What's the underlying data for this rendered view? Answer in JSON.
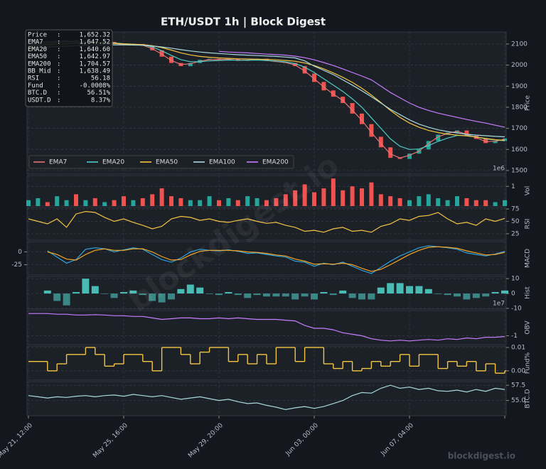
{
  "title": "ETH/USDT  1h  |  Block Digest",
  "watermark": "blockdigest.io",
  "info": [
    {
      "label": "Price",
      "value": "1,652.32"
    },
    {
      "label": "EMA7",
      "value": "1,647.52"
    },
    {
      "label": "EMA20",
      "value": "1,640.60"
    },
    {
      "label": "EMA50",
      "value": "1,642.97"
    },
    {
      "label": "EMA200",
      "value": "1,704.57"
    },
    {
      "label": "BB Mid",
      "value": "1,638.49"
    },
    {
      "label": "RSI",
      "value": "56.18"
    },
    {
      "label": "Fund",
      "value": "-0.0008%"
    },
    {
      "label": "BTC.D",
      "value": "56.51%"
    },
    {
      "label": "USDT.D",
      "value": "8.37%"
    }
  ],
  "chart_data": [
    {
      "type": "candle",
      "ylabel": "Price",
      "ylim": [
        1483,
        2157
      ],
      "yticks": [
        1500,
        1600,
        1700,
        1800,
        1900,
        2000,
        2100
      ],
      "grid": true,
      "up_color": "#26a69a",
      "down_color": "#ef5350",
      "legend": "lower left",
      "offset_label": "1e6",
      "values": [
        2105,
        2112,
        2110,
        2115,
        2118,
        2108,
        2112,
        2105,
        2110,
        2100,
        2095,
        2100,
        2092,
        2070,
        2040,
        2010,
        1995,
        2010,
        2025,
        2030,
        2025,
        2030,
        2020,
        2025,
        2030,
        2020,
        2015,
        2010,
        1995,
        1960,
        1920,
        1880,
        1850,
        1820,
        1770,
        1720,
        1660,
        1610,
        1560,
        1555,
        1580,
        1600,
        1640,
        1670,
        1680,
        1690,
        1665,
        1650,
        1630,
        1640,
        1652
      ],
      "series": [
        {
          "name": "EMA7",
          "color": "#e57373",
          "values": [
            2100,
            2108,
            2110,
            2113,
            2115,
            2111,
            2111,
            2107,
            2108,
            2103,
            2098,
            2098,
            2094,
            2078,
            2052,
            2022,
            2003,
            2006,
            2018,
            2026,
            2026,
            2028,
            2023,
            2024,
            2027,
            2022,
            2017,
            2012,
            2000,
            1972,
            1935,
            1896,
            1862,
            1832,
            1786,
            1738,
            1680,
            1628,
            1578,
            1560,
            1572,
            1592,
            1628,
            1660,
            1676,
            1686,
            1672,
            1656,
            1637,
            1639,
            1648
          ]
        },
        {
          "name": "EMA20",
          "color": "#4ecdc4",
          "values": [
            2095,
            2100,
            2104,
            2108,
            2110,
            2110,
            2110,
            2108,
            2108,
            2105,
            2101,
            2099,
            2096,
            2086,
            2068,
            2046,
            2026,
            2016,
            2016,
            2020,
            2022,
            2024,
            2023,
            2023,
            2024,
            2022,
            2019,
            2015,
            2007,
            1990,
            1965,
            1935,
            1905,
            1875,
            1840,
            1800,
            1750,
            1700,
            1650,
            1615,
            1600,
            1602,
            1618,
            1638,
            1654,
            1666,
            1666,
            1660,
            1650,
            1645,
            1641
          ]
        },
        {
          "name": "EMA50",
          "color": "#f4c542",
          "values": [
            2090,
            2093,
            2096,
            2099,
            2101,
            2103,
            2104,
            2104,
            2104,
            2103,
            2101,
            2099,
            2097,
            2092,
            2083,
            2071,
            2058,
            2048,
            2041,
            2037,
            2034,
            2032,
            2030,
            2029,
            2028,
            2027,
            2025,
            2022,
            2018,
            2010,
            1998,
            1982,
            1963,
            1942,
            1918,
            1890,
            1858,
            1822,
            1785,
            1752,
            1725,
            1705,
            1690,
            1680,
            1672,
            1668,
            1664,
            1659,
            1652,
            1646,
            1643
          ]
        },
        {
          "name": "EMA100",
          "color": "#a8dadc",
          "values": [
            2080,
            2083,
            2086,
            2088,
            2090,
            2092,
            2094,
            2095,
            2096,
            2096,
            2096,
            2095,
            2094,
            2091,
            2086,
            2080,
            2073,
            2067,
            2062,
            2058,
            2055,
            2052,
            2049,
            2047,
            2045,
            2043,
            2041,
            2038,
            2034,
            2020,
            1995,
            1975,
            1955,
            1930,
            1905,
            1878,
            1850,
            1820,
            1790,
            1765,
            1740,
            1720,
            1705,
            1693,
            1685,
            1678,
            1672,
            1668,
            1665,
            1662,
            1660
          ]
        },
        {
          "name": "EMA200",
          "color": "#c77dff",
          "values": [
            null,
            null,
            null,
            null,
            null,
            null,
            null,
            null,
            null,
            null,
            null,
            null,
            null,
            null,
            null,
            null,
            null,
            null,
            null,
            null,
            2065,
            2062,
            2060,
            2058,
            2055,
            2052,
            2050,
            2047,
            2042,
            2035,
            2025,
            2012,
            1998,
            1982,
            1965,
            1948,
            1930,
            1900,
            1870,
            1845,
            1820,
            1800,
            1785,
            1772,
            1762,
            1752,
            1742,
            1733,
            1725,
            1715,
            1705
          ]
        }
      ]
    },
    {
      "type": "volume",
      "ylabel": "Vol",
      "ylim": [
        0,
        1.55
      ],
      "yticks": [
        1
      ],
      "grid": true,
      "up_color": "#26a69a",
      "down_color": "#ef5350",
      "values": [
        0.3,
        0.4,
        0.2,
        0.5,
        0.3,
        0.6,
        0.3,
        0.4,
        0.2,
        0.3,
        0.5,
        0.3,
        0.4,
        0.6,
        0.9,
        0.5,
        0.4,
        0.3,
        0.3,
        0.5,
        0.3,
        0.4,
        0.3,
        0.5,
        0.4,
        0.3,
        0.4,
        0.6,
        0.8,
        1.1,
        0.7,
        0.9,
        1.4,
        0.8,
        1.0,
        0.9,
        1.2,
        0.6,
        0.5,
        0.4,
        0.3,
        0.5,
        0.6,
        0.4,
        0.3,
        0.5,
        0.4,
        0.3,
        0.3,
        0.2,
        0.3
      ]
    },
    {
      "type": "line",
      "ylabel": "RSI",
      "ylim": [
        12,
        78
      ],
      "yticks": [
        25,
        50,
        75
      ],
      "grid": true,
      "series": [
        {
          "color": "#f4c542",
          "values": [
            55,
            50,
            45,
            55,
            38,
            65,
            70,
            68,
            58,
            50,
            55,
            48,
            42,
            35,
            40,
            55,
            60,
            58,
            52,
            55,
            50,
            48,
            52,
            55,
            50,
            46,
            48,
            42,
            38,
            30,
            32,
            28,
            35,
            38,
            30,
            32,
            28,
            40,
            45,
            55,
            52,
            60,
            62,
            68,
            55,
            45,
            48,
            42,
            55,
            50,
            56
          ]
        }
      ]
    },
    {
      "type": "line",
      "ylabel": "MACD",
      "ylim": [
        -45,
        20
      ],
      "yticks": [
        -25,
        0
      ],
      "tick_side": "left",
      "grid": true,
      "series": [
        {
          "color": "#2ea3e0",
          "values": [
            null,
            null,
            2,
            -10,
            -22,
            -15,
            5,
            8,
            6,
            0,
            4,
            8,
            5,
            -5,
            -15,
            -20,
            -12,
            0,
            5,
            3,
            2,
            4,
            1,
            -3,
            -2,
            -5,
            -8,
            -10,
            -18,
            -20,
            -28,
            -22,
            -25,
            -20,
            -28,
            -36,
            -42,
            -30,
            -18,
            -8,
            0,
            8,
            12,
            10,
            8,
            5,
            -2,
            -5,
            -8,
            -4,
            1
          ]
        },
        {
          "color": "#f5a623",
          "values": [
            null,
            null,
            0,
            -5,
            -14,
            -16,
            -5,
            3,
            6,
            3,
            3,
            6,
            6,
            0,
            -9,
            -16,
            -15,
            -6,
            1,
            3,
            3,
            3,
            2,
            0,
            -1,
            -3,
            -6,
            -8,
            -14,
            -18,
            -24,
            -23,
            -24,
            -22,
            -25,
            -32,
            -38,
            -34,
            -25,
            -15,
            -5,
            3,
            9,
            10,
            9,
            7,
            2,
            -2,
            -6,
            -5,
            -1
          ]
        }
      ]
    },
    {
      "type": "bar",
      "ylabel": "Hist",
      "ylim": [
        -10.5,
        11.5
      ],
      "yticks": [
        -10,
        0,
        10
      ],
      "grid": true,
      "color": "#4ecdc4",
      "offset_label": "1e7",
      "values": [
        null,
        null,
        2,
        -5,
        -8,
        1,
        10,
        5,
        0,
        -3,
        1,
        2,
        -1,
        -5,
        -6,
        -4,
        3,
        6,
        4,
        0,
        -1,
        1,
        -1,
        -3,
        -1,
        -2,
        -2,
        -2,
        -4,
        -2,
        -4,
        1,
        -1,
        2,
        -3,
        -4,
        -4,
        4,
        7,
        7,
        5,
        5,
        3,
        0,
        -1,
        -2,
        -4,
        -3,
        -2,
        1,
        2
      ]
    },
    {
      "type": "line",
      "ylabel": "OBV",
      "ylim": [
        -1.6,
        0.7
      ],
      "yticks": [
        -1
      ],
      "grid": true,
      "series": [
        {
          "color": "#c77dff",
          "values": [
            0.5,
            0.5,
            0.5,
            0.45,
            0.45,
            0.4,
            0.4,
            0.42,
            0.4,
            0.35,
            0.35,
            0.3,
            0.3,
            0.2,
            0.1,
            0.15,
            0.2,
            0.2,
            0.15,
            0.15,
            0.2,
            0.15,
            0.2,
            0.15,
            0.1,
            0.1,
            0.1,
            0.05,
            0,
            -0.3,
            -0.5,
            -0.5,
            -0.6,
            -0.8,
            -0.9,
            -1.0,
            -1.2,
            -1.3,
            -1.35,
            -1.3,
            -1.35,
            -1.3,
            -1.25,
            -1.3,
            -1.2,
            -1.25,
            -1.15,
            -1.2,
            -1.1,
            -1.1,
            -1.05
          ]
        }
      ]
    },
    {
      "type": "step",
      "ylabel": "Fund%",
      "ylim": [
        -0.004,
        0.0106
      ],
      "yticks": [
        {
          "value": 0,
          "label": "0.00"
        },
        0.01
      ],
      "grid": true,
      "color": "#f4c542",
      "values": [
        0.004,
        0.004,
        0.0,
        0.003,
        0.007,
        0.007,
        0.01,
        0.007,
        0.002,
        0.003,
        0.007,
        0.007,
        0.004,
        0.0,
        0.01,
        0.01,
        0.007,
        0.003,
        0.008,
        0.01,
        0.01,
        0.004,
        0.007,
        0.003,
        0.007,
        0.003,
        0.01,
        0.01,
        0.004,
        0.01,
        0.01,
        0.003,
        0.001,
        0.004,
        0.0,
        0.001,
        0.004,
        0.002,
        0.004,
        0.007,
        0.002,
        0.007,
        0.007,
        0.001,
        0.004,
        0.002,
        0.004,
        0.0,
        0.003,
        -0.001,
        0.0
      ]
    },
    {
      "type": "line",
      "ylabel": "BTC.D",
      "ylim": [
        52.5,
        58.1
      ],
      "yticks": [
        {
          "value": 55,
          "label": "55.0"
        },
        57.5
      ],
      "grid": true,
      "categories": [
        "May 21, 12:00",
        null,
        null,
        null,
        null,
        null,
        null,
        null,
        null,
        null,
        "May 25, 16:00",
        null,
        null,
        null,
        null,
        null,
        null,
        null,
        null,
        null,
        "May 29, 20:00",
        null,
        null,
        null,
        null,
        null,
        null,
        null,
        null,
        null,
        "Jun 03, 00:00",
        null,
        null,
        null,
        null,
        null,
        null,
        null,
        null,
        null,
        "Jun 07, 04:00",
        null,
        null,
        null,
        null,
        null,
        null,
        null,
        null,
        null,
        null
      ],
      "series": [
        {
          "color": "#a8dadc",
          "values": [
            55.8,
            55.6,
            55.4,
            55.6,
            55.5,
            55.7,
            55.8,
            55.6,
            55.8,
            55.9,
            55.7,
            56.0,
            55.8,
            55.6,
            55.8,
            55.5,
            55.2,
            55.4,
            55.6,
            55.3,
            55.0,
            55.2,
            54.8,
            54.5,
            54.6,
            54.2,
            53.9,
            53.5,
            53.8,
            54.0,
            53.7,
            54.0,
            54.5,
            55.0,
            55.8,
            56.3,
            56.2,
            57.0,
            57.5,
            57.0,
            57.2,
            56.8,
            57.0,
            56.6,
            56.5,
            56.7,
            56.4,
            56.8,
            56.5,
            57.0,
            56.8
          ]
        }
      ]
    }
  ]
}
